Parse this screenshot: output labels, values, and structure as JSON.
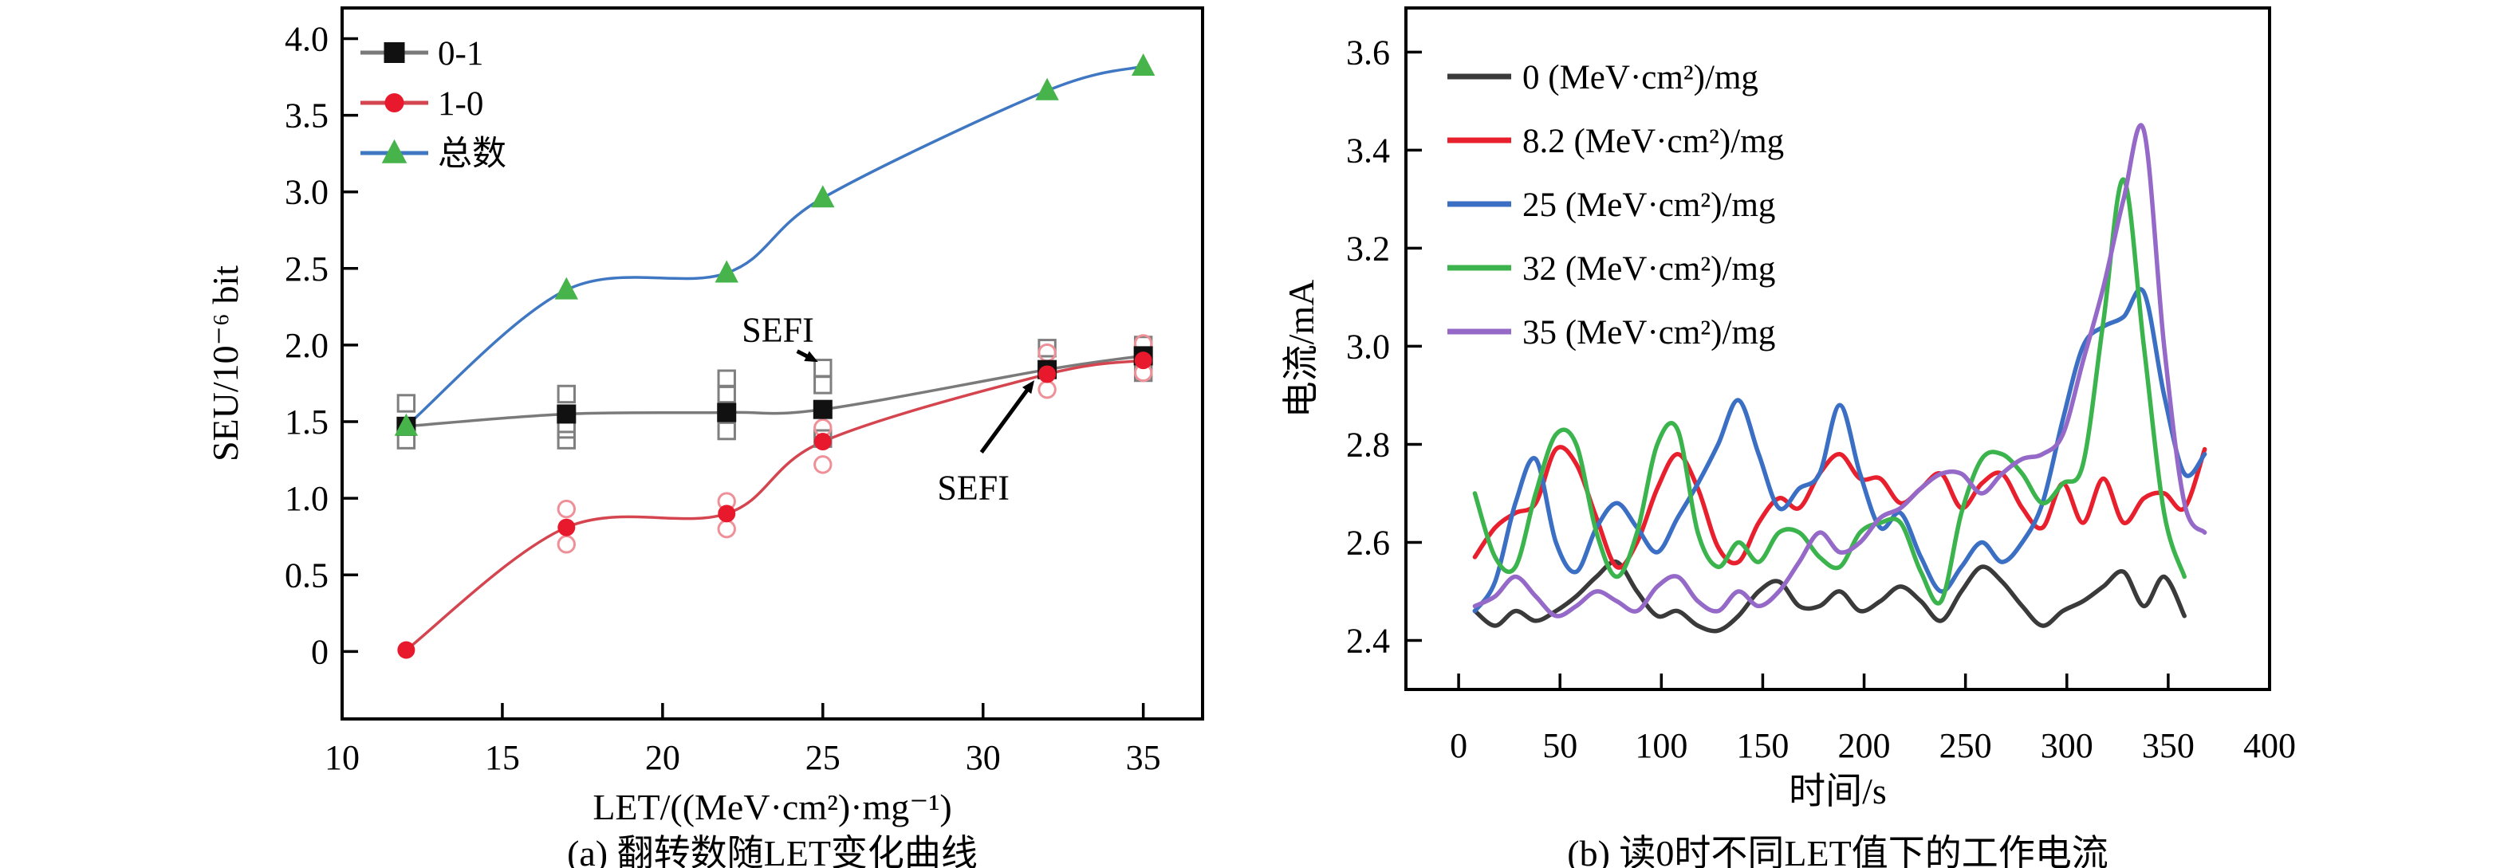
{
  "page": {
    "background": "#ffffff"
  },
  "panels": [
    {
      "caption": "(a) 翻转数随LET变化曲线"
    },
    {
      "caption": "(b) 读0时不同LET值下的工作电流"
    }
  ],
  "chart_data": [
    {
      "type": "line",
      "title": "(a) 翻转数随LET变化曲线",
      "xlabel": "LET/((MeV·cm²)·mg⁻¹)",
      "ylabel": "SEU/10⁻⁶ bit",
      "xlim": [
        10,
        36.85
      ],
      "ylim": [
        -0.44,
        4.2
      ],
      "grid": false,
      "legend_position": "top-left-inside",
      "xticks": [
        {
          "v": 10,
          "label": "10"
        },
        {
          "v": 15,
          "label": "15"
        },
        {
          "v": 20,
          "label": "20"
        },
        {
          "v": 25,
          "label": "25"
        },
        {
          "v": 30,
          "label": "30"
        },
        {
          "v": 35,
          "label": "35"
        }
      ],
      "yticks": [
        {
          "v": 0,
          "label": "0"
        },
        {
          "v": 0.5,
          "label": "0.5"
        },
        {
          "v": 1.0,
          "label": "1.0"
        },
        {
          "v": 1.5,
          "label": "1.5"
        },
        {
          "v": 2.0,
          "label": "2.0"
        },
        {
          "v": 2.5,
          "label": "2.5"
        },
        {
          "v": 3.0,
          "label": "3.0"
        },
        {
          "v": 3.5,
          "label": "3.5"
        },
        {
          "v": 4.0,
          "label": "4.0"
        }
      ],
      "series": [
        {
          "name": "0-1",
          "x": [
            12,
            17,
            22,
            25,
            32,
            35
          ],
          "y": [
            1.47,
            1.55,
            1.56,
            1.58,
            1.84,
            1.93
          ],
          "line_color": "#7a7a7a",
          "line_width": 3.5,
          "marker": "square",
          "marker_color": "#111111",
          "marker_size": 12
        },
        {
          "name": "1-0",
          "x": [
            12,
            17,
            22,
            25,
            32,
            35
          ],
          "y": [
            0.01,
            0.81,
            0.9,
            1.37,
            1.81,
            1.9
          ],
          "line_color": "#d4454f",
          "line_width": 3.5,
          "marker": "circle",
          "marker_color": "#e8192c",
          "marker_size": 11
        },
        {
          "name": "总数",
          "x": [
            12,
            17,
            22,
            25,
            32,
            35
          ],
          "y": [
            1.47,
            2.36,
            2.47,
            2.96,
            3.66,
            3.82
          ],
          "line_color": "#3f77c2",
          "line_width": 3.5,
          "marker": "triangle",
          "marker_color": "#46b44b",
          "marker_size": 14
        }
      ],
      "scatter": [
        {
          "name": "0-1 repeat runs (open squares)",
          "marker": "square-open",
          "color": "#7f7f7f",
          "x": [
            12,
            12,
            17,
            17,
            17,
            22,
            22,
            22,
            25,
            25,
            25,
            32,
            35,
            35
          ],
          "y": [
            1.62,
            1.38,
            1.68,
            1.45,
            1.38,
            1.78,
            1.68,
            1.44,
            1.85,
            1.74,
            1.39,
            1.98,
            2.0,
            1.82
          ]
        },
        {
          "name": "1-0 repeat runs (open circles)",
          "marker": "circle-open",
          "color": "#ef9098",
          "x": [
            17,
            17,
            22,
            22,
            25,
            25,
            32,
            32,
            35,
            35
          ],
          "y": [
            0.93,
            0.7,
            0.98,
            0.8,
            1.46,
            1.22,
            1.95,
            1.71,
            2.01,
            1.82
          ]
        }
      ],
      "annotations": [
        {
          "text": "SEFI",
          "x": 23.6,
          "y": 2.1,
          "arrow": {
            "x1": 24.2,
            "y1": 1.96,
            "x2": 24.85,
            "y2": 1.89
          }
        },
        {
          "text": "SEFI",
          "x": 29.7,
          "y": 1.07,
          "arrow": {
            "x1": 29.95,
            "y1": 1.3,
            "x2": 31.6,
            "y2": 1.77
          }
        }
      ]
    },
    {
      "type": "line",
      "title": "(b) 读0时不同LET值下的工作电流",
      "xlabel": "时间/s",
      "ylabel": "电流/mA",
      "xlim": [
        -26,
        400
      ],
      "ylim": [
        2.3,
        3.69
      ],
      "grid": false,
      "legend_position": "top-left-inside",
      "xticks": [
        {
          "v": 0,
          "label": "0"
        },
        {
          "v": 50,
          "label": "50"
        },
        {
          "v": 100,
          "label": "100"
        },
        {
          "v": 150,
          "label": "150"
        },
        {
          "v": 200,
          "label": "200"
        },
        {
          "v": 250,
          "label": "250"
        },
        {
          "v": 300,
          "label": "300"
        },
        {
          "v": 350,
          "label": "350"
        },
        {
          "v": 400,
          "label": "400"
        }
      ],
      "yticks": [
        {
          "v": 2.4,
          "label": "2.4"
        },
        {
          "v": 2.6,
          "label": "2.6"
        },
        {
          "v": 2.8,
          "label": "2.8"
        },
        {
          "v": 3.0,
          "label": "3.0"
        },
        {
          "v": 3.2,
          "label": "3.2"
        },
        {
          "v": 3.4,
          "label": "3.4"
        },
        {
          "v": 3.6,
          "label": "3.6"
        }
      ],
      "series": [
        {
          "name": "0 (MeV·cm²)/mg",
          "x_start": 8,
          "x_step": 10,
          "line_color": "#3a3a3a",
          "line_width": 5.5,
          "values": [
            2.46,
            2.43,
            2.46,
            2.44,
            2.46,
            2.49,
            2.53,
            2.56,
            2.5,
            2.45,
            2.46,
            2.43,
            2.42,
            2.45,
            2.5,
            2.52,
            2.47,
            2.47,
            2.5,
            2.46,
            2.48,
            2.51,
            2.48,
            2.44,
            2.5,
            2.55,
            2.52,
            2.47,
            2.43,
            2.46,
            2.48,
            2.51,
            2.54,
            2.47,
            2.53,
            2.45
          ]
        },
        {
          "name": "8.2 (MeV·cm²)/mg",
          "x_start": 8,
          "x_step": 10,
          "line_color": "#e8202e",
          "line_width": 5.5,
          "values": [
            2.57,
            2.63,
            2.66,
            2.68,
            2.79,
            2.76,
            2.65,
            2.55,
            2.6,
            2.71,
            2.78,
            2.71,
            2.59,
            2.56,
            2.64,
            2.69,
            2.67,
            2.74,
            2.78,
            2.73,
            2.73,
            2.68,
            2.71,
            2.74,
            2.67,
            2.72,
            2.74,
            2.67,
            2.63,
            2.72,
            2.64,
            2.73,
            2.64,
            2.69,
            2.7,
            2.67,
            2.79
          ]
        },
        {
          "name": "25 (MeV·cm²)/mg",
          "x_start": 8,
          "x_step": 10,
          "line_color": "#3b6fc4",
          "line_width": 5.5,
          "values": [
            2.46,
            2.52,
            2.68,
            2.77,
            2.6,
            2.54,
            2.63,
            2.68,
            2.63,
            2.58,
            2.65,
            2.72,
            2.8,
            2.89,
            2.78,
            2.67,
            2.71,
            2.74,
            2.88,
            2.74,
            2.63,
            2.66,
            2.57,
            2.5,
            2.55,
            2.6,
            2.56,
            2.6,
            2.68,
            2.85,
            3.0,
            3.04,
            3.06,
            3.11,
            2.9,
            2.74,
            2.78
          ]
        },
        {
          "name": "32 (MeV·cm²)/mg",
          "x_start": 8,
          "x_step": 10,
          "line_color": "#3cb44e",
          "line_width": 5.5,
          "values": [
            2.7,
            2.57,
            2.55,
            2.7,
            2.82,
            2.8,
            2.62,
            2.53,
            2.62,
            2.8,
            2.83,
            2.62,
            2.55,
            2.6,
            2.56,
            2.62,
            2.62,
            2.57,
            2.55,
            2.62,
            2.64,
            2.64,
            2.54,
            2.48,
            2.66,
            2.77,
            2.78,
            2.74,
            2.68,
            2.72,
            2.76,
            3.05,
            3.34,
            3.0,
            2.66,
            2.53
          ]
        },
        {
          "name": "35 (MeV·cm²)/mg",
          "x_start": 8,
          "x_step": 10,
          "line_color": "#9569c8",
          "line_width": 5.5,
          "values": [
            2.47,
            2.49,
            2.53,
            2.49,
            2.45,
            2.47,
            2.5,
            2.48,
            2.46,
            2.51,
            2.53,
            2.48,
            2.46,
            2.5,
            2.47,
            2.5,
            2.56,
            2.62,
            2.58,
            2.6,
            2.65,
            2.67,
            2.71,
            2.74,
            2.74,
            2.7,
            2.74,
            2.77,
            2.78,
            2.82,
            2.97,
            3.12,
            3.3,
            3.44,
            3.0,
            2.68,
            2.62
          ]
        }
      ]
    }
  ]
}
